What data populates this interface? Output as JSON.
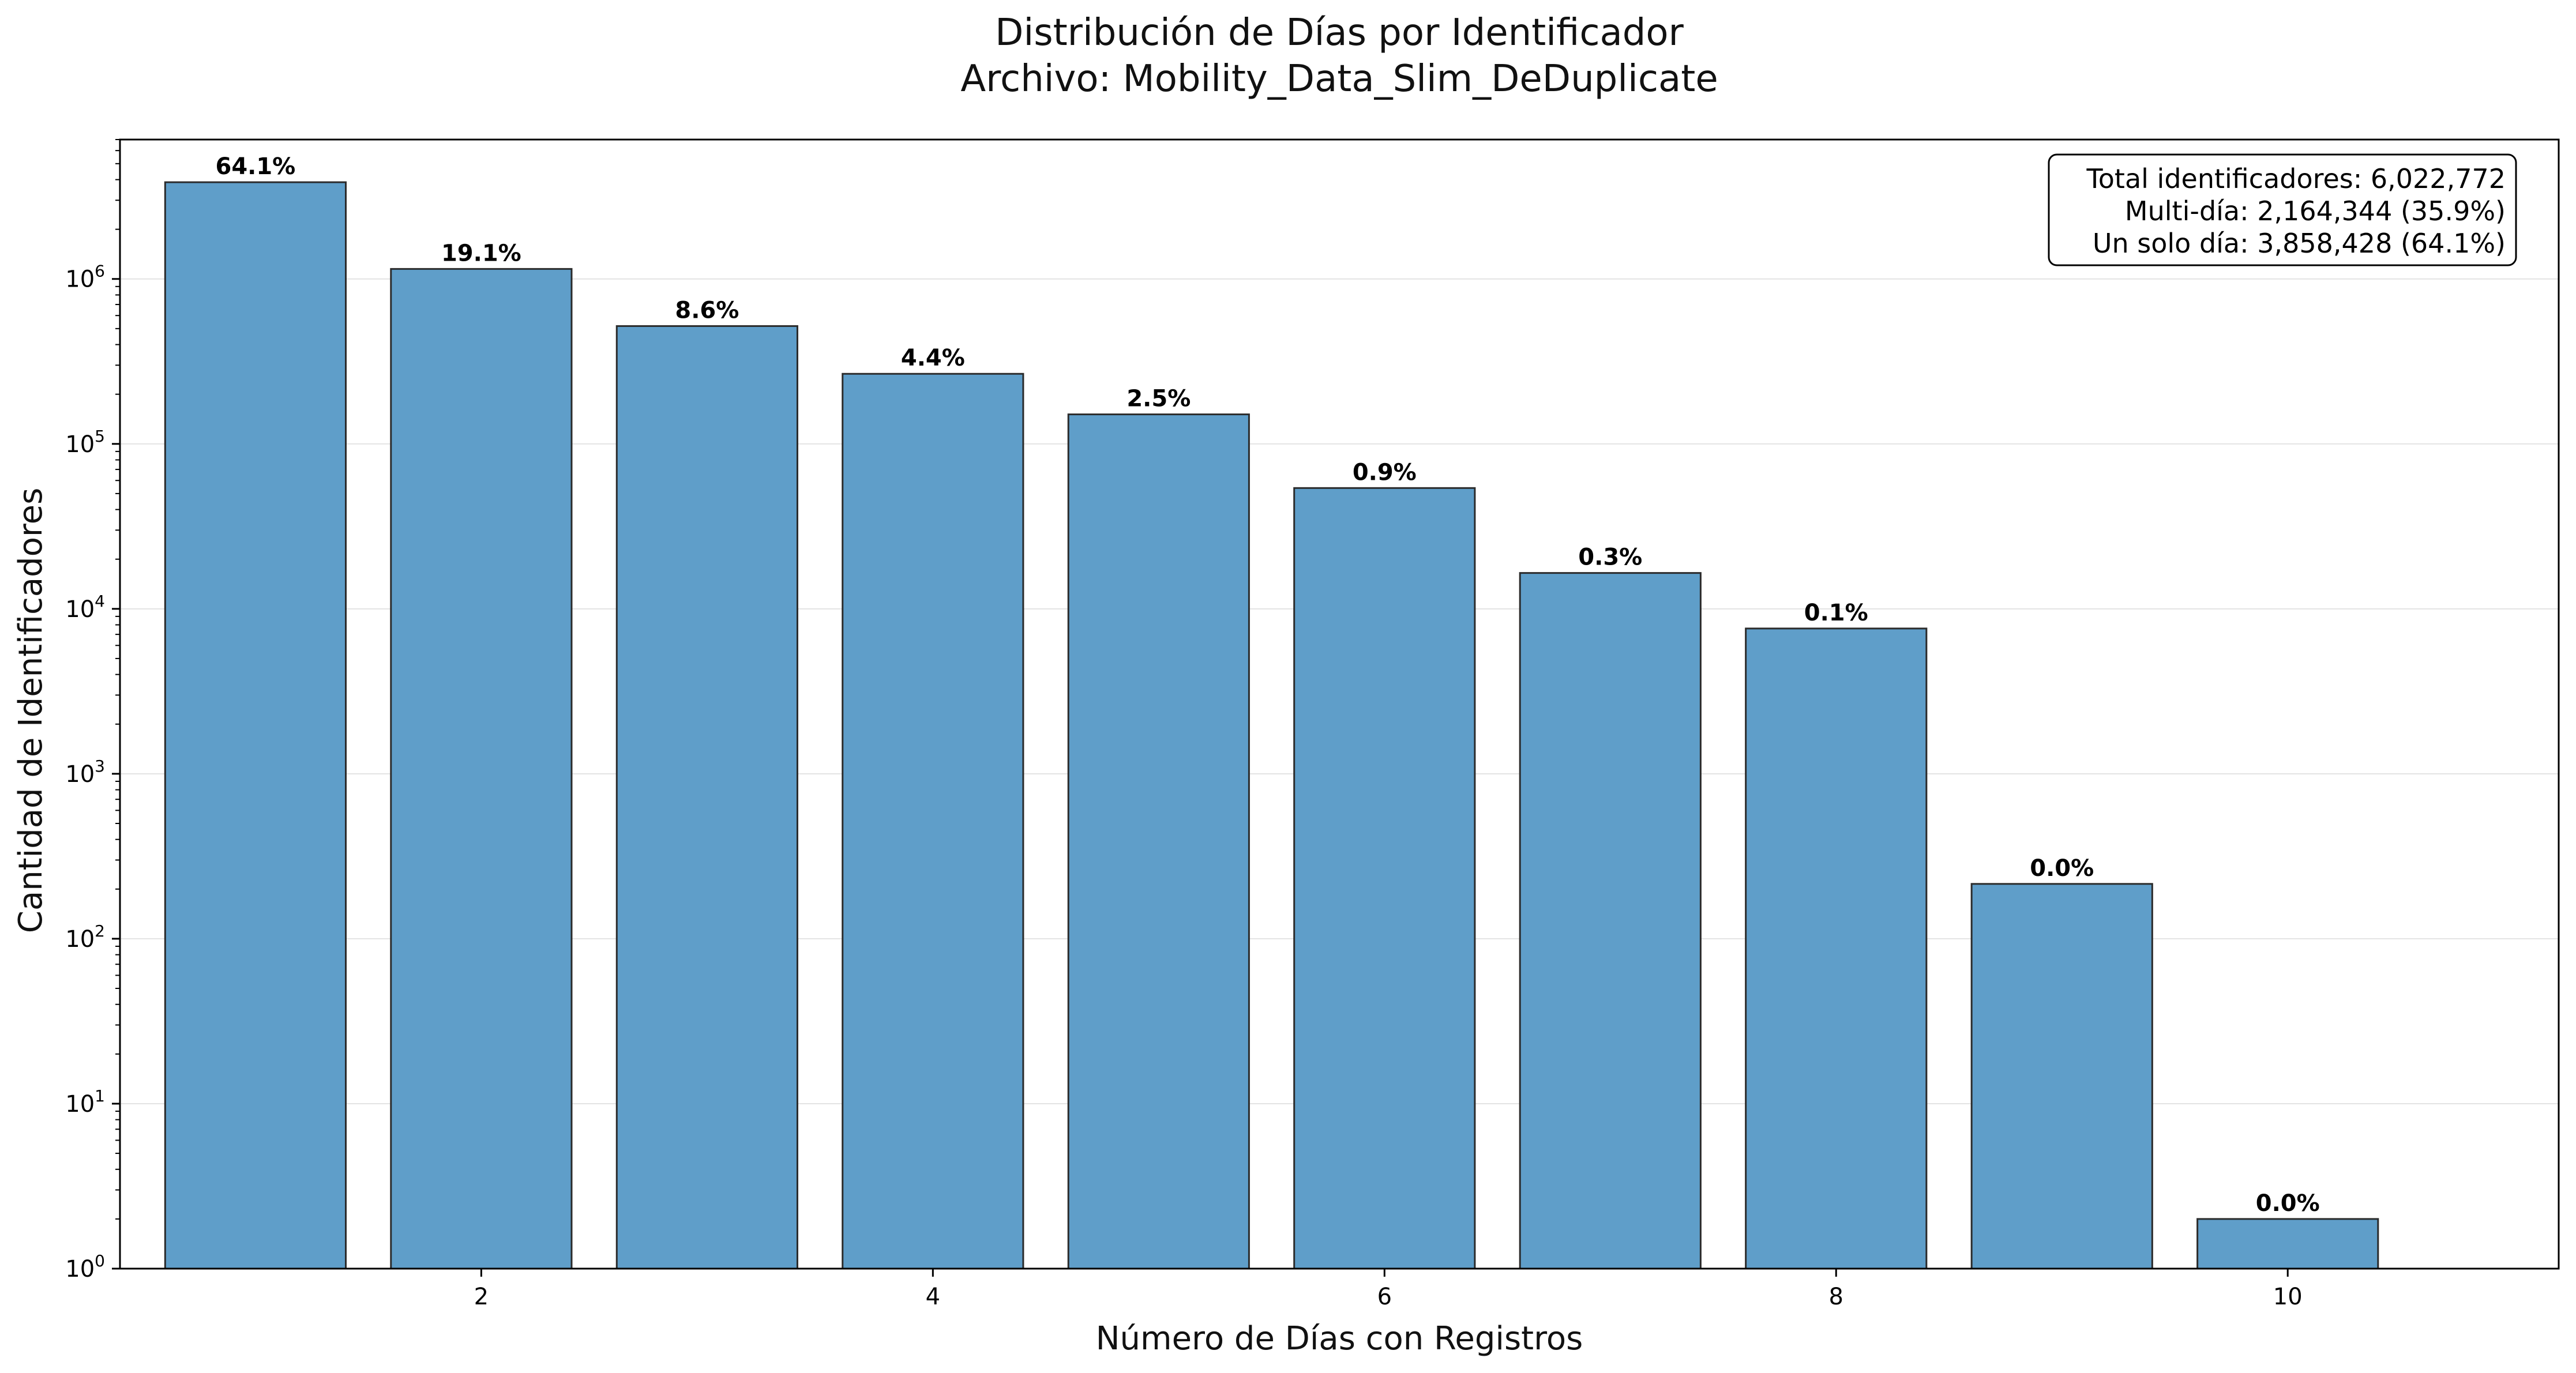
{
  "chart_data": {
    "type": "bar",
    "title": "Distribución de Días por Identificador",
    "subtitle": "Archivo: Mobility_Data_Slim_DeDuplicate",
    "xlabel": "Número de Días con Registros",
    "ylabel": "Cantidad de Identificadores",
    "y_scale": "log",
    "ylim": [
      1,
      7000000
    ],
    "xlim": [
      0.4,
      11.2
    ],
    "x": [
      1,
      2,
      3,
      4,
      5,
      6,
      7,
      8,
      9,
      10
    ],
    "values": [
      3858428,
      1150000,
      518000,
      266000,
      151000,
      54000,
      16500,
      7600,
      215,
      2
    ],
    "data_labels": [
      "64.1%",
      "19.1%",
      "8.6%",
      "4.4%",
      "2.5%",
      "0.9%",
      "0.3%",
      "0.1%",
      "0.0%",
      "0.0%"
    ],
    "x_ticks": [
      2,
      4,
      6,
      8,
      10
    ],
    "y_ticks": [
      {
        "value": 1,
        "base": "10",
        "exp": "0"
      },
      {
        "value": 10,
        "base": "10",
        "exp": "1"
      },
      {
        "value": 100,
        "base": "10",
        "exp": "2"
      },
      {
        "value": 1000,
        "base": "10",
        "exp": "3"
      },
      {
        "value": 10000,
        "base": "10",
        "exp": "4"
      },
      {
        "value": 100000,
        "base": "10",
        "exp": "5"
      },
      {
        "value": 1000000,
        "base": "10",
        "exp": "6"
      }
    ],
    "grid": "horizontal",
    "bar_color": "#5f9ec9",
    "bar_edge_color": "#2b2b2b",
    "stats_box": {
      "placement": "top-right",
      "lines": [
        "Total identificadores: 6,022,772",
        "Multi-día: 2,164,344 (35.9%)",
        "Un solo día: 3,858,428 (64.1%)"
      ]
    }
  }
}
